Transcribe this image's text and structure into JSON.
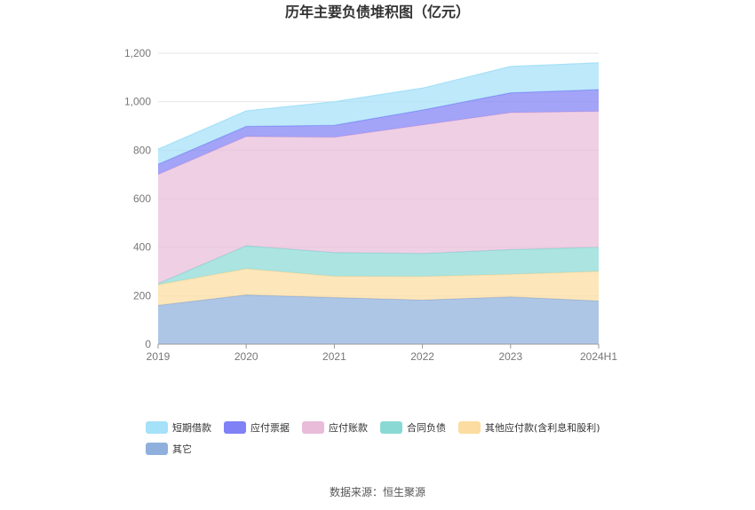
{
  "chart_data": {
    "type": "area",
    "stacked": true,
    "title": "历年主要负债堆积图（亿元）",
    "categories": [
      "2019",
      "2020",
      "2021",
      "2022",
      "2023",
      "2024H1"
    ],
    "ylim": [
      0,
      1200
    ],
    "yticks": [
      0,
      200,
      400,
      600,
      800,
      1000,
      1200
    ],
    "ytick_labels": [
      "0",
      "200",
      "400",
      "600",
      "800",
      "1,000",
      "1,200"
    ],
    "grid": true,
    "legend_position": "bottom",
    "series": [
      {
        "name": "其它",
        "color": "#8fb0dc",
        "values": [
          160,
          203,
          192,
          182,
          195,
          178
        ]
      },
      {
        "name": "其他应付款(含利息和股利)",
        "color": "#fcdca0",
        "values": [
          85,
          108,
          88,
          97,
          93,
          122
        ]
      },
      {
        "name": "合同负债",
        "color": "#8ad9d5",
        "values": [
          5,
          95,
          98,
          95,
          102,
          100
        ]
      },
      {
        "name": "应付账款",
        "color": "#e9bcda",
        "values": [
          450,
          450,
          475,
          530,
          565,
          560
        ]
      },
      {
        "name": "应付票据",
        "color": "#7f81f5",
        "values": [
          42,
          42,
          50,
          62,
          82,
          90
        ]
      },
      {
        "name": "短期借款",
        "color": "#a5e1f8",
        "values": [
          62,
          64,
          97,
          90,
          108,
          110
        ]
      }
    ],
    "legend_order": [
      "短期借款",
      "应付票据",
      "应付账款",
      "合同负债",
      "其他应付款(含利息和股利)",
      "其它"
    ]
  },
  "source_note": "数据来源：恒生聚源"
}
